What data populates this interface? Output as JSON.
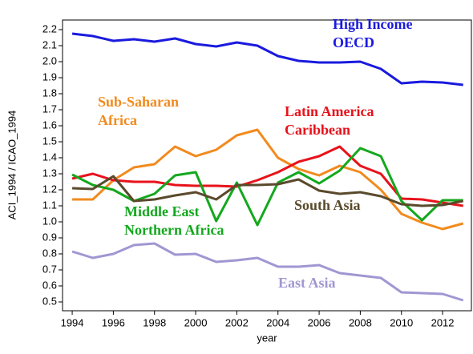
{
  "chart_data": {
    "type": "line",
    "x_label": "year",
    "y_label": "ACI_1994 / ICAO_1994",
    "x": [
      1994,
      1995,
      1996,
      1997,
      1998,
      1999,
      2000,
      2001,
      2002,
      2003,
      2004,
      2005,
      2006,
      2007,
      2008,
      2009,
      2010,
      2011,
      2012,
      2013
    ],
    "series": [
      {
        "name": "High Income OECD",
        "color": "#1a1adf",
        "values": [
          2.175,
          2.16,
          2.13,
          2.14,
          2.125,
          2.145,
          2.11,
          2.095,
          2.12,
          2.1,
          2.035,
          2.005,
          1.995,
          1.995,
          2.0,
          1.955,
          1.865,
          1.875,
          1.87,
          1.855
        ]
      },
      {
        "name": "Sub-Saharan Africa",
        "color": "#f28a1e",
        "values": [
          1.14,
          1.14,
          1.26,
          1.34,
          1.36,
          1.47,
          1.41,
          1.45,
          1.54,
          1.575,
          1.4,
          1.33,
          1.29,
          1.35,
          1.31,
          1.2,
          1.05,
          0.995,
          0.955,
          0.99
        ]
      },
      {
        "name": "Latin America Caribbean",
        "color": "#e8121b",
        "values": [
          1.27,
          1.3,
          1.26,
          1.25,
          1.25,
          1.23,
          1.225,
          1.225,
          1.22,
          1.26,
          1.31,
          1.375,
          1.41,
          1.47,
          1.35,
          1.3,
          1.145,
          1.14,
          1.12,
          1.1
        ]
      },
      {
        "name": "Middle East Northern Africa",
        "color": "#14a81e",
        "values": [
          1.295,
          1.23,
          1.2,
          1.13,
          1.175,
          1.29,
          1.31,
          1.005,
          1.245,
          0.98,
          1.245,
          1.31,
          1.24,
          1.32,
          1.46,
          1.41,
          1.13,
          1.01,
          1.135,
          1.135
        ]
      },
      {
        "name": "South Asia",
        "color": "#5a4a2c",
        "values": [
          1.21,
          1.205,
          1.285,
          1.13,
          1.14,
          1.165,
          1.185,
          1.14,
          1.23,
          1.23,
          1.235,
          1.265,
          1.195,
          1.175,
          1.185,
          1.16,
          1.11,
          1.1,
          1.105,
          1.13
        ]
      },
      {
        "name": "East Asia",
        "color": "#a097d2",
        "values": [
          0.815,
          0.775,
          0.8,
          0.855,
          0.865,
          0.795,
          0.8,
          0.75,
          0.76,
          0.775,
          0.72,
          0.72,
          0.73,
          0.68,
          0.665,
          0.65,
          0.56,
          0.555,
          0.55,
          0.51
        ]
      }
    ],
    "xlim": [
      1993.53,
      2013.4
    ],
    "xticks": [
      1994,
      1996,
      1998,
      2000,
      2002,
      2004,
      2006,
      2008,
      2010,
      2012
    ],
    "ylim": [
      0.445,
      2.26
    ],
    "yticks": [
      0.5,
      0.6,
      0.7,
      0.8,
      0.9,
      {
        "value": 1.0,
        "label": "1.0"
      },
      1.1,
      1.2,
      1.3,
      1.4,
      1.5,
      1.6,
      1.7,
      1.8,
      1.9,
      {
        "value": 2.0,
        "label": "2.0"
      },
      2.1,
      2.2
    ],
    "grid": false
  }
}
